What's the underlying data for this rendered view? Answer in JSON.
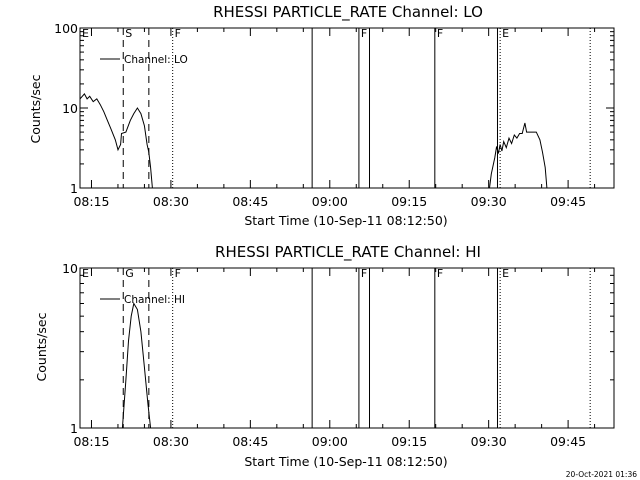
{
  "timestamp": "20-Oct-2021 01:36",
  "chart_data": [
    {
      "type": "line",
      "title": "RHESSI PARTICLE_RATE Channel: LO",
      "xlabel": "Start Time (10-Sep-11 08:12:50)",
      "ylabel": "Counts/sec",
      "y_scale": "log",
      "xlim": [
        "08:12:50",
        "09:53:40"
      ],
      "ylim": [
        1,
        100
      ],
      "x_ticks": [
        "08:15",
        "08:30",
        "08:45",
        "09:00",
        "09:15",
        "09:30",
        "09:45"
      ],
      "y_ticks": [
        "1",
        "10",
        "100"
      ],
      "legend": {
        "label": "Channel: LO",
        "position": "top-left"
      },
      "series": [
        {
          "name": "Channel: LO",
          "segments": [
            [
              [
                "08:12:50",
                13
              ],
              [
                "08:13:40",
                15
              ],
              [
                "08:14:10",
                13
              ],
              [
                "08:14:40",
                14
              ],
              [
                "08:15:20",
                12
              ],
              [
                "08:16:00",
                13
              ],
              [
                "08:16:40",
                11
              ],
              [
                "08:17:20",
                9
              ],
              [
                "08:18:00",
                7
              ],
              [
                "08:18:40",
                5.5
              ],
              [
                "08:19:30",
                4
              ],
              [
                "08:20:00",
                3.0
              ],
              [
                "08:20:30",
                3.5
              ],
              [
                "08:20:40",
                4.8
              ],
              [
                "08:21:30",
                5.0
              ],
              [
                "08:22:20",
                7
              ],
              [
                "08:23:00",
                8.5
              ],
              [
                "08:23:40",
                10
              ],
              [
                "08:24:20",
                8.5
              ],
              [
                "08:25:00",
                6
              ],
              [
                "08:25:30",
                3.5
              ],
              [
                "08:25:50",
                2.8
              ],
              [
                "08:26:10",
                1.8
              ],
              [
                "08:26:30",
                1.0
              ]
            ],
            [
              [
                "09:30:10",
                1.0
              ],
              [
                "09:30:30",
                1.5
              ],
              [
                "09:31:10",
                2.4
              ],
              [
                "09:31:30",
                3.3
              ],
              [
                "09:31:50",
                2.7
              ],
              [
                "09:32:10",
                3.5
              ],
              [
                "09:32:30",
                2.9
              ],
              [
                "09:32:50",
                3.8
              ],
              [
                "09:33:20",
                3.2
              ],
              [
                "09:33:50",
                4.2
              ],
              [
                "09:34:20",
                3.6
              ],
              [
                "09:34:50",
                4.6
              ],
              [
                "09:35:20",
                4.2
              ],
              [
                "09:35:50",
                4.8
              ],
              [
                "09:36:20",
                4.8
              ],
              [
                "09:36:50",
                6.5
              ],
              [
                "09:37:10",
                5.0
              ],
              [
                "09:38:20",
                5.0
              ],
              [
                "09:39:00",
                5.0
              ],
              [
                "09:39:40",
                4.0
              ],
              [
                "09:40:10",
                2.8
              ],
              [
                "09:40:40",
                1.8
              ],
              [
                "09:41:00",
                1.0
              ]
            ]
          ]
        }
      ],
      "markers": [
        {
          "time": "08:21:00",
          "style": "dashed",
          "label": "S"
        },
        {
          "time": "08:25:50",
          "style": "dashed",
          "label": ""
        },
        {
          "time": "08:30:20",
          "style": "dotted",
          "label": "F"
        },
        {
          "time": "08:56:40",
          "style": "solid",
          "label": ""
        },
        {
          "time": "09:05:30",
          "style": "solid",
          "label": "F"
        },
        {
          "time": "09:07:30",
          "style": "solid",
          "label": ""
        },
        {
          "time": "09:19:50",
          "style": "solid",
          "label": "F"
        },
        {
          "time": "09:31:40",
          "style": "solid",
          "label": ""
        },
        {
          "time": "09:32:10",
          "style": "dotted",
          "label": "E"
        },
        {
          "time": "09:49:10",
          "style": "dotted",
          "label": ""
        }
      ],
      "corner_label": "E"
    },
    {
      "type": "line",
      "title": "RHESSI PARTICLE_RATE Channel: HI",
      "xlabel": "Start Time (10-Sep-11 08:12:50)",
      "ylabel": "Counts/sec",
      "y_scale": "log",
      "xlim": [
        "08:12:50",
        "09:53:40"
      ],
      "ylim": [
        1,
        10
      ],
      "x_ticks": [
        "08:15",
        "08:30",
        "08:45",
        "09:00",
        "09:15",
        "09:30",
        "09:45"
      ],
      "y_ticks": [
        "1",
        "10"
      ],
      "legend": {
        "label": "Channel: HI",
        "position": "top-left"
      },
      "series": [
        {
          "name": "Channel: HI",
          "segments": [
            [
              [
                "08:20:50",
                1.0
              ],
              [
                "08:21:30",
                2.0
              ],
              [
                "08:22:00",
                3.5
              ],
              [
                "08:22:30",
                5.0
              ],
              [
                "08:23:00",
                6.0
              ],
              [
                "08:23:40",
                5.5
              ],
              [
                "08:24:20",
                4.0
              ],
              [
                "08:25:00",
                2.4
              ],
              [
                "08:25:40",
                1.4
              ],
              [
                "08:26:10",
                1.0
              ]
            ]
          ]
        }
      ],
      "markers": [
        {
          "time": "08:21:00",
          "style": "dashed",
          "label": "G"
        },
        {
          "time": "08:25:50",
          "style": "dashed",
          "label": ""
        },
        {
          "time": "08:30:20",
          "style": "dotted",
          "label": "F"
        },
        {
          "time": "08:56:40",
          "style": "solid",
          "label": ""
        },
        {
          "time": "09:05:30",
          "style": "solid",
          "label": "F"
        },
        {
          "time": "09:07:30",
          "style": "solid",
          "label": ""
        },
        {
          "time": "09:19:50",
          "style": "solid",
          "label": "F"
        },
        {
          "time": "09:31:40",
          "style": "solid",
          "label": ""
        },
        {
          "time": "09:32:10",
          "style": "dotted",
          "label": "E"
        },
        {
          "time": "09:49:10",
          "style": "dotted",
          "label": ""
        }
      ],
      "corner_label": "E"
    }
  ]
}
